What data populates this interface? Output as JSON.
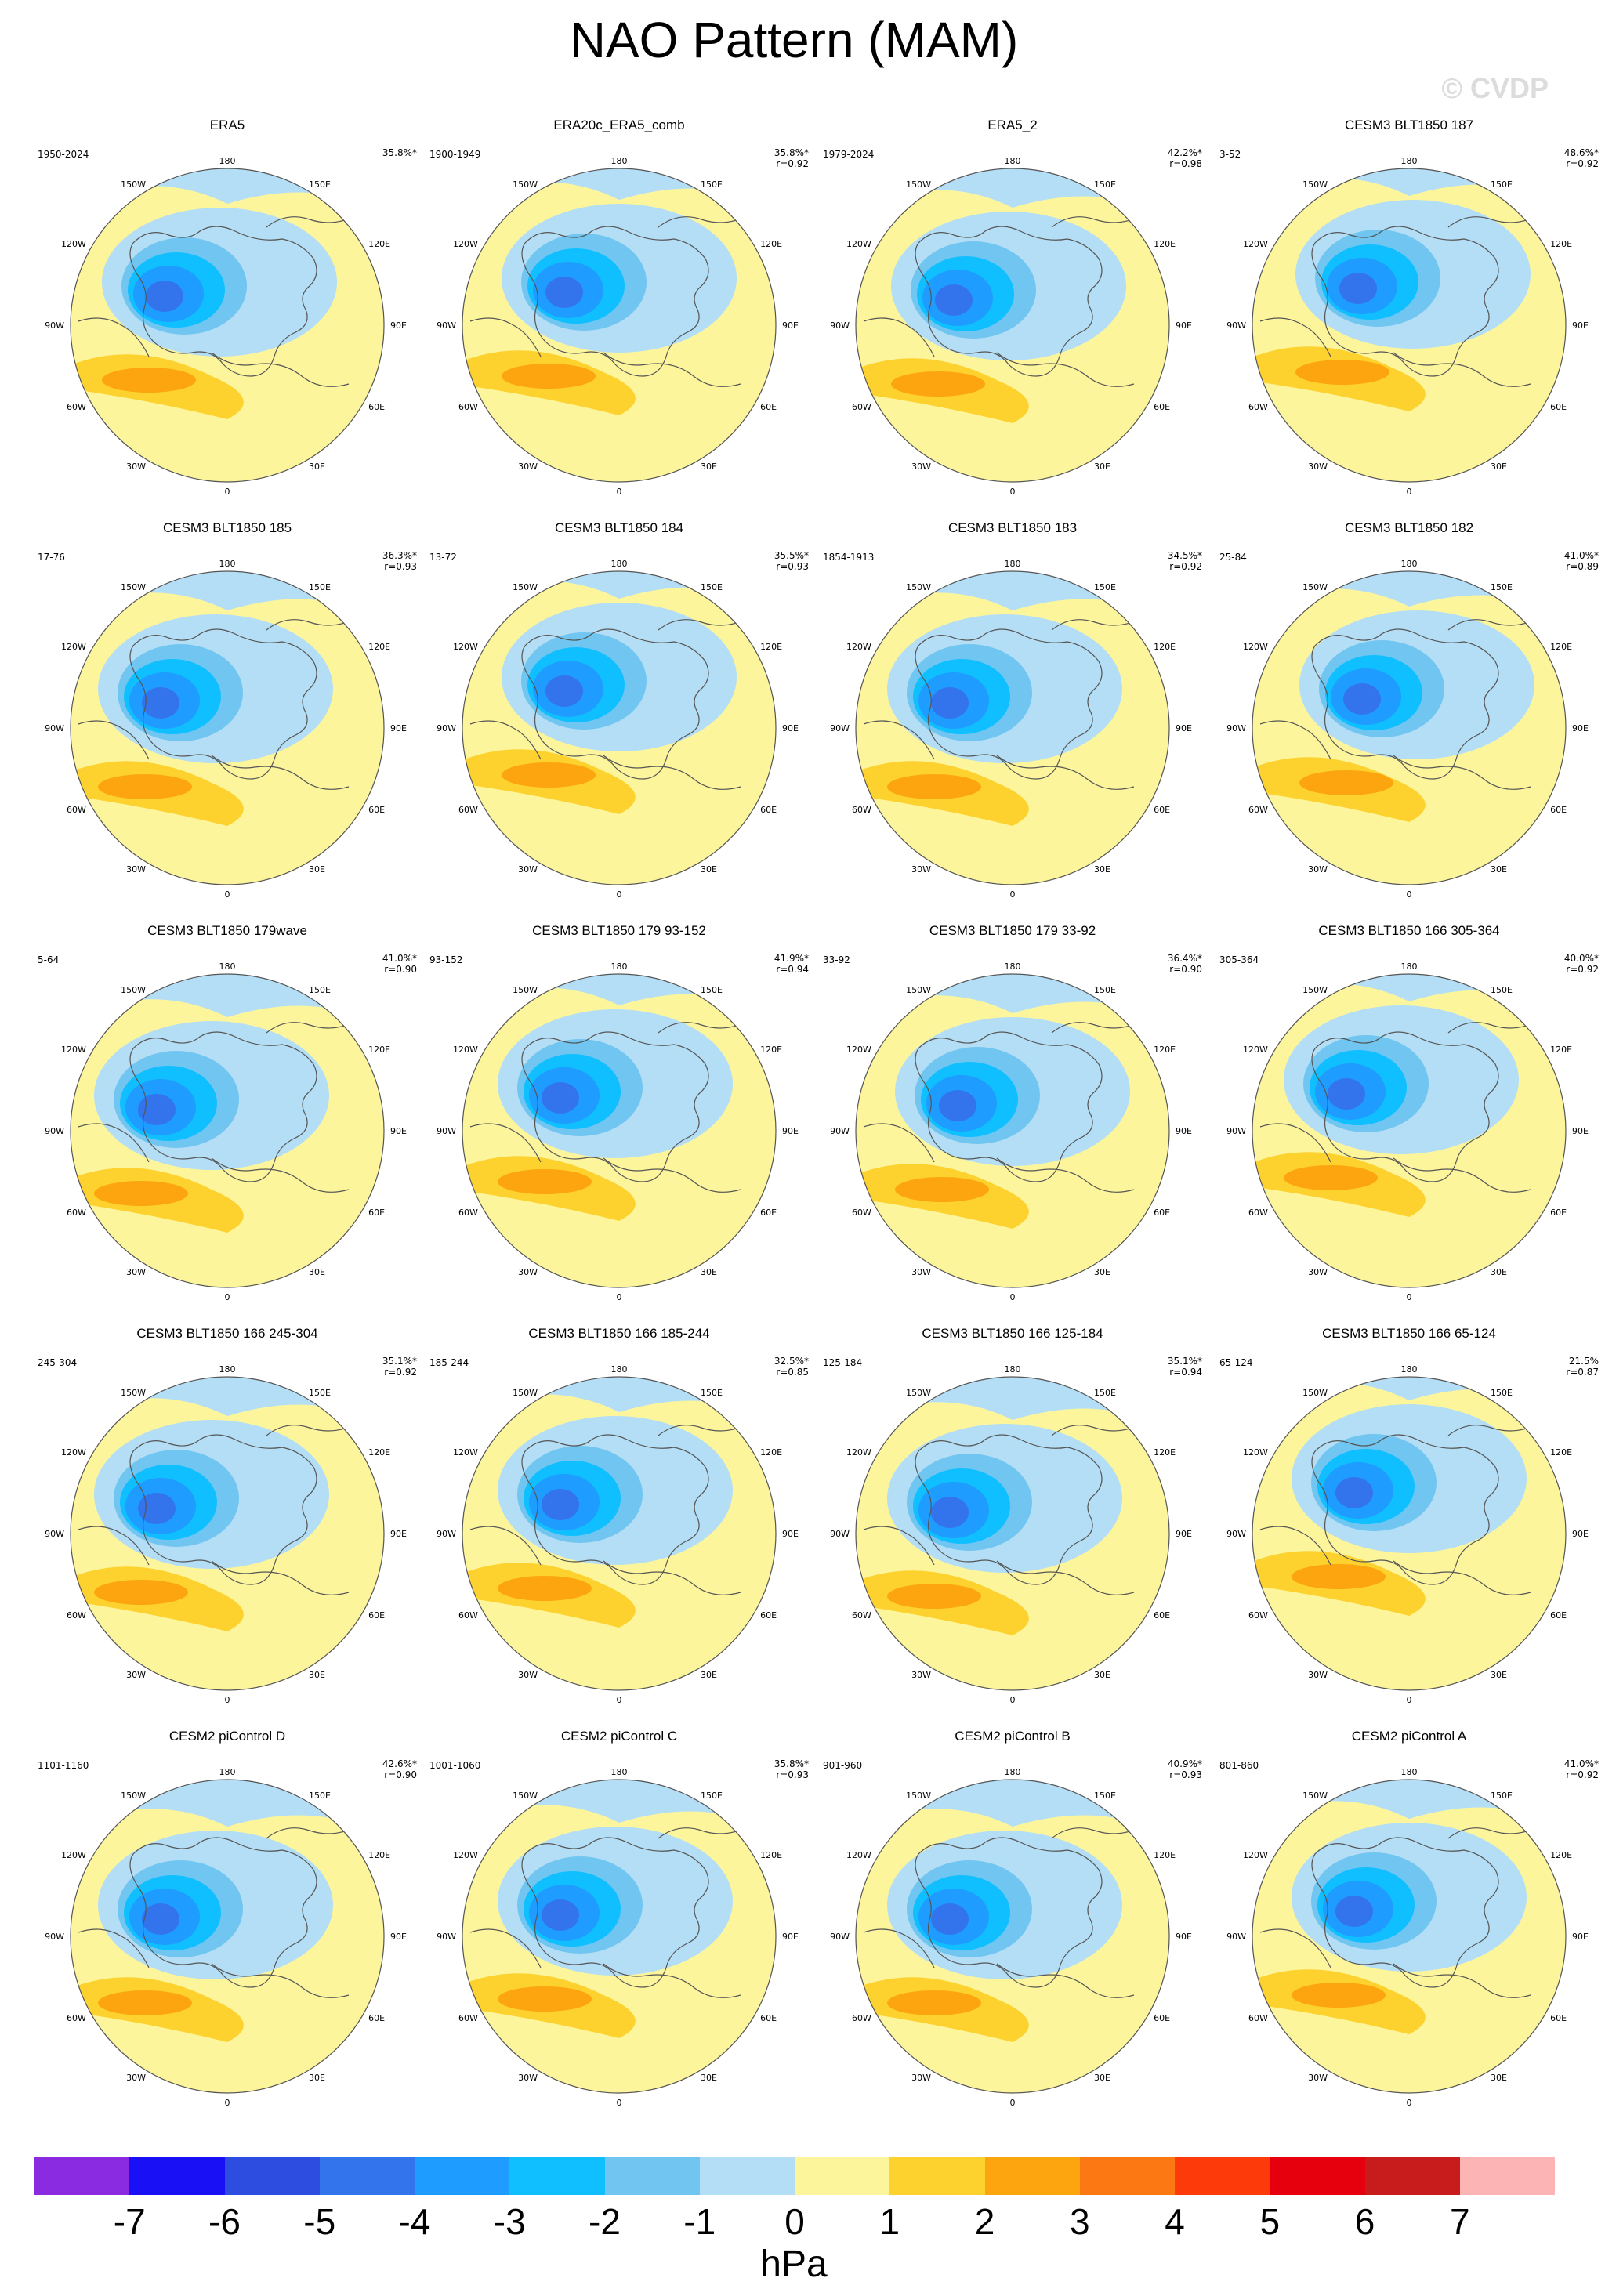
{
  "title": "NAO Pattern (MAM)",
  "watermark": "© CVDP",
  "lon_labels": {
    "top": "180",
    "bottom": "0",
    "left": [
      "150W",
      "120W",
      "90W",
      "60W",
      "30W"
    ],
    "right": [
      "150E",
      "120E",
      "90E",
      "60E",
      "30E"
    ]
  },
  "panels": [
    {
      "title": "ERA5",
      "period": "1950-2024",
      "pct": "35.8%*",
      "r": ""
    },
    {
      "title": "ERA20c_ERA5_comb",
      "period": "1900-1949",
      "pct": "35.8%*",
      "r": "r=0.92"
    },
    {
      "title": "ERA5_2",
      "period": "1979-2024",
      "pct": "42.2%*",
      "r": "r=0.98"
    },
    {
      "title": "CESM3 BLT1850 187",
      "period": "3-52",
      "pct": "48.6%*",
      "r": "r=0.92"
    },
    {
      "title": "CESM3 BLT1850 185",
      "period": "17-76",
      "pct": "36.3%*",
      "r": "r=0.93"
    },
    {
      "title": "CESM3 BLT1850 184",
      "period": "13-72",
      "pct": "35.5%*",
      "r": "r=0.93"
    },
    {
      "title": "CESM3 BLT1850 183",
      "period": "1854-1913",
      "pct": "34.5%*",
      "r": "r=0.92"
    },
    {
      "title": "CESM3 BLT1850 182",
      "period": "25-84",
      "pct": "41.0%*",
      "r": "r=0.89"
    },
    {
      "title": "CESM3 BLT1850 179wave",
      "period": "5-64",
      "pct": "41.0%*",
      "r": "r=0.90"
    },
    {
      "title": "CESM3 BLT1850 179 93-152",
      "period": "93-152",
      "pct": "41.9%*",
      "r": "r=0.94"
    },
    {
      "title": "CESM3 BLT1850 179 33-92",
      "period": "33-92",
      "pct": "36.4%*",
      "r": "r=0.90"
    },
    {
      "title": "CESM3 BLT1850 166 305-364",
      "period": "305-364",
      "pct": "40.0%*",
      "r": "r=0.92"
    },
    {
      "title": "CESM3 BLT1850 166 245-304",
      "period": "245-304",
      "pct": "35.1%*",
      "r": "r=0.92"
    },
    {
      "title": "CESM3 BLT1850 166 185-244",
      "period": "185-244",
      "pct": "32.5%*",
      "r": "r=0.85"
    },
    {
      "title": "CESM3 BLT1850 166 125-184",
      "period": "125-184",
      "pct": "35.1%*",
      "r": "r=0.94"
    },
    {
      "title": "CESM3 BLT1850 166 65-124",
      "period": "65-124",
      "pct": "21.5%",
      "r": "r=0.87"
    },
    {
      "title": "CESM2 piControl D",
      "period": "1101-1160",
      "pct": "42.6%*",
      "r": "r=0.90"
    },
    {
      "title": "CESM2 piControl C",
      "period": "1001-1060",
      "pct": "35.8%*",
      "r": "r=0.93"
    },
    {
      "title": "CESM2 piControl B",
      "period": "901-960",
      "pct": "40.9%*",
      "r": "r=0.93"
    },
    {
      "title": "CESM2 piControl A",
      "period": "801-860",
      "pct": "41.0%*",
      "r": "r=0.92"
    }
  ],
  "colorbar": {
    "colors": [
      "#8a2be2",
      "#1a10f5",
      "#2d4de0",
      "#3374ec",
      "#1e9cff",
      "#0fbfff",
      "#70c6f0",
      "#b4def5",
      "#fcf59c",
      "#fdd22e",
      "#fca50f",
      "#fc7812",
      "#fd3b0a",
      "#e6000e",
      "#c81c1c",
      "#fdb4b4"
    ],
    "labels": [
      "-7",
      "-6",
      "-5",
      "-4",
      "-3",
      "-2",
      "-1",
      "0",
      "1",
      "2",
      "3",
      "4",
      "5",
      "6",
      "7"
    ],
    "unit": "hPa"
  },
  "colors": {
    "pale_yellow": "#fcf59c",
    "yellow": "#fdd22e",
    "orange": "#fca50f",
    "dark_orange": "#fc7812",
    "pale_blue": "#b4def5",
    "light_blue": "#70c6f0",
    "cyan_blue": "#0fbfff",
    "blue": "#1e9cff",
    "mid_blue": "#3374ec",
    "dark_blue": "#2d4de0"
  }
}
